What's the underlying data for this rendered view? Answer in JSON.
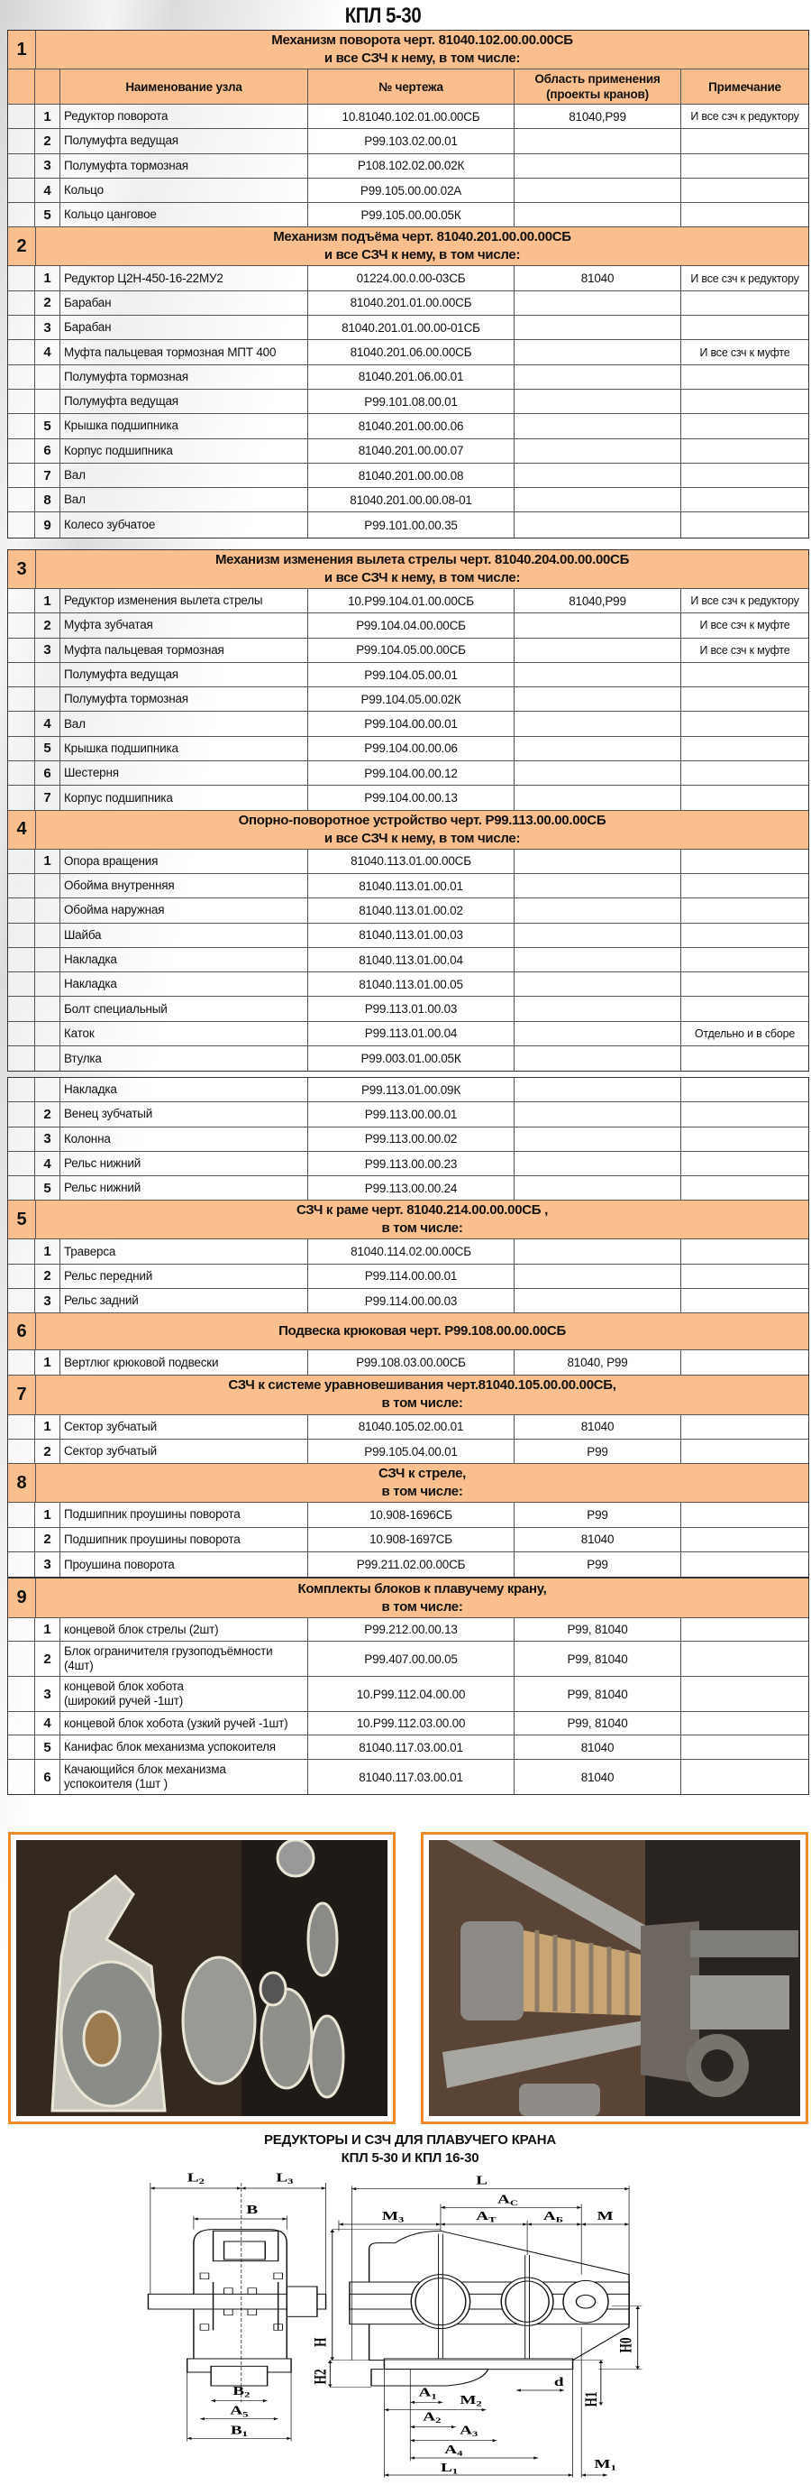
{
  "page_title": "КПЛ 5-30",
  "columns": [
    "",
    "Наименование узла",
    "№ чертежа",
    "Область применения\n(проекты кранов)",
    "Примечание"
  ],
  "sections": [
    {
      "num": "1",
      "title_lines": [
        "Механизм поворота  черт. 81040.102.00.00.00СБ",
        "и все СЗЧ к нему, в том числе:"
      ],
      "rows": [
        {
          "n": "1",
          "name": "Редуктор поворота",
          "drawing": "10.81040.102.01.00.00СБ",
          "area": "81040,Р99",
          "note": "И все сзч к редуктору"
        },
        {
          "n": "2",
          "name": "Полумуфта ведущая",
          "drawing": "Р99.103.02.00.01",
          "area": "",
          "note": ""
        },
        {
          "n": "3",
          "name": "Полумуфта тормозная",
          "drawing": "Р108.102.02.00.02К",
          "area": "",
          "note": ""
        },
        {
          "n": "4",
          "name": "Кольцо",
          "drawing": "Р99.105.00.00.02А",
          "area": "",
          "note": ""
        },
        {
          "n": "5",
          "name": "Кольцо цанговое",
          "drawing": "Р99.105.00.00.05К",
          "area": "",
          "note": ""
        }
      ]
    },
    {
      "num": "2",
      "title_lines": [
        "Механизм подъёма   черт. 81040.201.00.00.00СБ",
        "и все СЗЧ к нему, в том числе:"
      ],
      "rows": [
        {
          "n": "1",
          "name": "Редуктор Ц2Н-450-16-22МУ2",
          "drawing": "01224.00.0.00-03СБ",
          "area": "81040",
          "note": "И все сзч к редуктору"
        },
        {
          "n": "2",
          "name": "Барабан",
          "drawing": "81040.201.01.00.00СБ",
          "area": "",
          "note": ""
        },
        {
          "n": "3",
          "name": "Барабан",
          "drawing": "81040.201.01.00.00-01СБ",
          "area": "",
          "note": ""
        },
        {
          "n": "4",
          "name": "Муфта пальцевая тормозная МПТ 400",
          "drawing": "81040.201.06.00.00СБ",
          "area": "",
          "note": "И все сзч к муфте"
        },
        {
          "n": "",
          "name": "Полумуфта тормозная",
          "drawing": "81040.201.06.00.01",
          "area": "",
          "note": ""
        },
        {
          "n": "",
          "name": "Полумуфта ведущая",
          "drawing": "Р99.101.08.00.01",
          "area": "",
          "note": ""
        },
        {
          "n": "5",
          "name": "Крышка подшипника",
          "drawing": "81040.201.00.00.06",
          "area": "",
          "note": ""
        },
        {
          "n": "6",
          "name": "Корпус подшипника",
          "drawing": "81040.201.00.00.07",
          "area": "",
          "note": ""
        },
        {
          "n": "7",
          "name": "Вал",
          "drawing": "81040.201.00.00.08",
          "area": "",
          "note": ""
        },
        {
          "n": "8",
          "name": "Вал",
          "drawing": "81040.201.00.00.08-01",
          "area": "",
          "note": ""
        },
        {
          "n": "9",
          "name": "Колесо зубчатое",
          "drawing": "Р99.101.00.00.35",
          "area": "",
          "note": ""
        }
      ]
    },
    {
      "num": "3",
      "title_lines": [
        "Механизм изменения вылета стрелы  черт. 81040.204.00.00.00СБ",
        "и все СЗЧ к нему, в том числе:"
      ],
      "rows": [
        {
          "n": "1",
          "name": "Редуктор изменения вылета стрелы",
          "drawing": "10.Р99.104.01.00.00СБ",
          "area": "81040,Р99",
          "note": "И все сзч к редуктору"
        },
        {
          "n": "2",
          "name": "Муфта зубчатая",
          "drawing": "Р99.104.04.00.00СБ",
          "area": "",
          "note": "И все сзч к муфте"
        },
        {
          "n": "3",
          "name": "Муфта пальцевая тормозная",
          "drawing": "Р99.104.05.00.00СБ",
          "area": "",
          "note": "И все сзч к муфте"
        },
        {
          "n": "",
          "name": "Полумуфта ведущая",
          "drawing": "Р99.104.05.00.01",
          "area": "",
          "note": ""
        },
        {
          "n": "",
          "name": "Полумуфта тормозная",
          "drawing": "Р99.104.05.00.02К",
          "area": "",
          "note": ""
        },
        {
          "n": "4",
          "name": "Вал",
          "drawing": "Р99.104.00.00.01",
          "area": "",
          "note": ""
        },
        {
          "n": "5",
          "name": "Крышка подшипника",
          "drawing": "Р99.104.00.00.06",
          "area": "",
          "note": ""
        },
        {
          "n": "6",
          "name": "Шестерня",
          "drawing": "Р99.104.00.00.12",
          "area": "",
          "note": ""
        },
        {
          "n": "7",
          "name": "Корпус подшипника",
          "drawing": "Р99.104.00.00.13",
          "area": "",
          "note": ""
        }
      ]
    },
    {
      "num": "4",
      "title_lines": [
        "Опорно-поворотное устройство   черт. Р99.113.00.00.00СБ",
        "и все СЗЧ к нему, в том числе:"
      ],
      "rows": [
        {
          "n": "1",
          "name": "Опора вращения",
          "drawing": "81040.113.01.00.00СБ",
          "area": "",
          "note": ""
        },
        {
          "n": "",
          "name": "Обойма внутренняя",
          "drawing": "81040.113.01.00.01",
          "area": "",
          "note": ""
        },
        {
          "n": "",
          "name": "Обойма наружная",
          "drawing": "81040.113.01.00.02",
          "area": "",
          "note": ""
        },
        {
          "n": "",
          "name": "Шайба",
          "drawing": "81040.113.01.00.03",
          "area": "",
          "note": ""
        },
        {
          "n": "",
          "name": "Накладка",
          "drawing": "81040.113.01.00.04",
          "area": "",
          "note": ""
        },
        {
          "n": "",
          "name": "Накладка",
          "drawing": "81040.113.01.00.05",
          "area": "",
          "note": ""
        },
        {
          "n": "",
          "name": "Болт специальный",
          "drawing": "Р99.113.01.00.03",
          "area": "",
          "note": ""
        },
        {
          "n": "",
          "name": "Каток",
          "drawing": "Р99.113.01.00.04",
          "area": "",
          "note": "Отдельно и в сборе"
        },
        {
          "n": "",
          "name": "Втулка",
          "drawing": "Р99.003.01.00.05К",
          "area": "",
          "note": ""
        },
        {
          "n": "",
          "name": "Накладка",
          "drawing": "Р99.113.01.00.09К",
          "area": "",
          "note": ""
        },
        {
          "n": "2",
          "name": "Венец зубчатый",
          "drawing": "Р99.113.00.00.01",
          "area": "",
          "note": ""
        },
        {
          "n": "3",
          "name": "Колонна",
          "drawing": "Р99.113.00.00.02",
          "area": "",
          "note": ""
        },
        {
          "n": "4",
          "name": "Рельс нижний",
          "drawing": "Р99.113.00.00.23",
          "area": "",
          "note": ""
        },
        {
          "n": "5",
          "name": "Рельс нижний",
          "drawing": "Р99.113.00.00.24",
          "area": "",
          "note": ""
        }
      ]
    },
    {
      "num": "5",
      "title_lines": [
        "СЗЧ  к раме    черт. 81040.214.00.00.00СБ ,",
        "в том числе:"
      ],
      "rows": [
        {
          "n": "1",
          "name": "Траверса",
          "drawing": "81040.114.02.00.00СБ",
          "area": "",
          "note": ""
        },
        {
          "n": "2",
          "name": "Рельс передний",
          "drawing": "Р99.114.00.00.01",
          "area": "",
          "note": ""
        },
        {
          "n": "3",
          "name": "Рельс задний",
          "drawing": "Р99.114.00.00.03",
          "area": "",
          "note": ""
        }
      ]
    },
    {
      "num": "6",
      "title_lines": [
        "Подвеска крюковая черт. Р99.108.00.00.00СБ"
      ],
      "rows": [
        {
          "n": "1",
          "name": "Вертлюг крюковой подвески",
          "drawing": "Р99.108.03.00.00СБ",
          "area": "81040, Р99",
          "note": ""
        }
      ]
    },
    {
      "num": "7",
      "title_lines": [
        "СЗЧ к системе уравновешивания черт.81040.105.00.00.00СБ,",
        "в том числе:"
      ],
      "rows": [
        {
          "n": "1",
          "name": "Сектор зубчатый",
          "drawing": "81040.105.02.00.01",
          "area": "81040",
          "note": ""
        },
        {
          "n": "2",
          "name": "Сектор зубчатый",
          "drawing": "Р99.105.04.00.01",
          "area": "Р99",
          "note": ""
        }
      ]
    },
    {
      "num": "8",
      "title_lines": [
        "СЗЧ к стреле,",
        "в том числе:"
      ],
      "rows": [
        {
          "n": "1",
          "name": "Подшипник проушины поворота",
          "drawing": "10.908-1696СБ",
          "area": "Р99",
          "note": ""
        },
        {
          "n": "2",
          "name": "Подшипник проушины поворота",
          "drawing": "10.908-1697СБ",
          "area": "81040",
          "note": ""
        },
        {
          "n": "3",
          "name": "Проушина поворота",
          "drawing": "Р99.211.02.00.00СБ",
          "area": "Р99",
          "note": ""
        }
      ]
    },
    {
      "num": "9",
      "title_lines": [
        "Комплекты блоков к плавучему крану,",
        "в том числе:"
      ],
      "rows": [
        {
          "n": "1",
          "name": "концевой  блок стрелы (2шт)",
          "drawing": "Р99.212.00.00.13",
          "area": "Р99, 81040",
          "note": ""
        },
        {
          "n": "2",
          "name": "Блок ограничителя грузоподъёмности\n(4шт)",
          "drawing": "Р99.407.00.00.05",
          "area": "Р99, 81040",
          "note": ""
        },
        {
          "n": "3",
          "name": "концевой блок хобота\n(широкий ручей -1шт)",
          "drawing": "10.Р99.112.04.00.00",
          "area": "Р99, 81040",
          "note": ""
        },
        {
          "n": "4",
          "name": "концевой блок хобота (узкий ручей -1шт)",
          "drawing": "10.Р99.112.03.00.00",
          "area": "Р99, 81040",
          "note": ""
        },
        {
          "n": "5",
          "name": "Канифас блок механизма успокоителя",
          "drawing": "81040.117.03.00.01",
          "area": "81040",
          "note": ""
        },
        {
          "n": "6",
          "name": "Качающийся блок механизма\nуспокоителя  (1шт )",
          "drawing": "81040.117.03.00.01",
          "area": "81040",
          "note": ""
        }
      ]
    }
  ],
  "drawing": {
    "title_lines": [
      "РЕДУКТОРЫ И СЗЧ ДЛЯ ПЛАВУЧЕГО КРАНА",
      "КПЛ 5-30 И КПЛ 16-30"
    ],
    "labels": {
      "L2": [
        "L",
        "2"
      ],
      "L3": [
        "L",
        "3"
      ],
      "B": [
        "B",
        ""
      ],
      "B2": [
        "B",
        "2"
      ],
      "A5": [
        "A",
        "5"
      ],
      "B1": [
        "B",
        "1"
      ],
      "L": [
        "L",
        ""
      ],
      "Ac": [
        "A",
        "C"
      ],
      "M3": [
        "M",
        "3"
      ],
      "AT": [
        "A",
        "T"
      ],
      "AB": [
        "A",
        "Б"
      ],
      "M": [
        "M",
        ""
      ],
      "H": [
        "H",
        ""
      ],
      "H2": [
        "H2",
        ""
      ],
      "H0": [
        "H0",
        ""
      ],
      "H1": [
        "H1",
        ""
      ],
      "d": [
        "d",
        ""
      ],
      "A1": [
        "A",
        "1"
      ],
      "M2": [
        "M",
        "2"
      ],
      "A2": [
        "A",
        "2"
      ],
      "A3": [
        "A",
        "3"
      ],
      "A4": [
        "A",
        "4"
      ],
      "L1": [
        "L",
        "1"
      ],
      "M1": [
        "M",
        "1"
      ]
    }
  },
  "colors": {
    "header": "#fabf8f",
    "photo_frame": "#f0892a"
  }
}
